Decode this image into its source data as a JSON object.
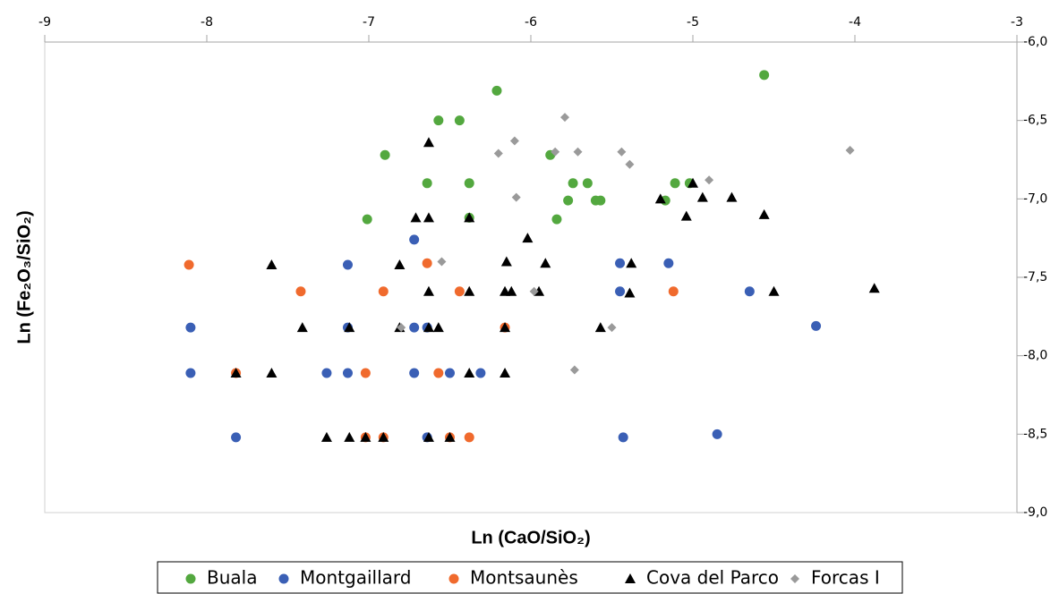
{
  "chart_data": {
    "type": "scatter",
    "xlabel": "Ln (CaO/SiO₂)",
    "ylabel": "Ln (Fe₂O₃/SiO₂)",
    "xlim": [
      -9,
      -3
    ],
    "xticks": [
      -9,
      -8,
      -7,
      -6,
      -5,
      -4,
      -3
    ],
    "ylim": [
      -9,
      -6
    ],
    "yticks": [
      {
        "value": -6,
        "label": "-6,0"
      },
      {
        "value": -6.5,
        "label": "-6,5"
      },
      {
        "value": -7,
        "label": "-7,0"
      },
      {
        "value": -7.5,
        "label": "-7,5"
      },
      {
        "value": -8,
        "label": "-8,0"
      },
      {
        "value": -8.5,
        "label": "-8,5"
      },
      {
        "value": -9,
        "label": "-9,0"
      }
    ],
    "legend": "bottom",
    "series": [
      {
        "name": "Buala",
        "color": "#53a83f",
        "marker": "circle",
        "x": [
          -4.56,
          -6.21,
          -6.57,
          -6.44,
          -6.9,
          -5.88,
          -6.64,
          -6.38,
          -5.74,
          -5.65,
          -5.11,
          -5.02,
          -7.01,
          -6.38,
          -5.84,
          -5.77,
          -5.6,
          -5.57,
          -5.17
        ],
        "values": [
          -6.21,
          -6.31,
          -6.5,
          -6.5,
          -6.72,
          -6.72,
          -6.9,
          -6.9,
          -6.9,
          -6.9,
          -6.9,
          -6.9,
          -7.13,
          -7.12,
          -7.13,
          -7.01,
          -7.01,
          -7.01,
          -7.01
        ]
      },
      {
        "name": "Montgaillard",
        "color": "#3a5fb5",
        "marker": "circle",
        "x": [
          -8.1,
          -8.1,
          -7.82,
          -7.13,
          -7.13,
          -7.13,
          -7.26,
          -6.72,
          -6.72,
          -6.72,
          -6.64,
          -6.64,
          -6.5,
          -6.31,
          -5.45,
          -5.45,
          -5.15,
          -5.43,
          -4.85,
          -4.65,
          -4.24
        ],
        "values": [
          -7.82,
          -8.11,
          -8.52,
          -7.42,
          -7.82,
          -8.11,
          -8.11,
          -7.26,
          -7.82,
          -8.11,
          -7.82,
          -8.52,
          -8.11,
          -8.11,
          -7.41,
          -7.59,
          -7.41,
          -8.52,
          -8.5,
          -7.59,
          -7.81
        ]
      },
      {
        "name": "Montsaunès",
        "color": "#f06a2d",
        "marker": "circle",
        "x": [
          -8.11,
          -7.82,
          -7.42,
          -7.02,
          -7.02,
          -6.91,
          -6.91,
          -6.64,
          -6.57,
          -6.5,
          -6.44,
          -6.38,
          -6.16,
          -5.12
        ],
        "values": [
          -7.42,
          -8.11,
          -7.59,
          -8.11,
          -8.52,
          -7.59,
          -8.52,
          -7.41,
          -8.11,
          -8.52,
          -7.59,
          -8.52,
          -7.82,
          -7.59
        ]
      },
      {
        "name": "Cova del Parco",
        "color": "#000000",
        "marker": "triangle",
        "x": [
          -7.6,
          -7.6,
          -7.82,
          -7.41,
          -7.26,
          -7.12,
          -7.12,
          -7.02,
          -6.91,
          -6.81,
          -6.81,
          -6.71,
          -6.63,
          -6.63,
          -6.63,
          -6.63,
          -6.63,
          -6.57,
          -6.5,
          -6.38,
          -6.38,
          -6.38,
          -6.16,
          -6.16,
          -6.16,
          -6.15,
          -6.12,
          -6.02,
          -5.95,
          -5.91,
          -5.57,
          -5.38,
          -5.39,
          -5.2,
          -5.04,
          -5.0,
          -4.94,
          -4.76,
          -4.56,
          -4.5,
          -3.88
        ],
        "values": [
          -7.42,
          -8.11,
          -8.11,
          -7.82,
          -8.52,
          -7.82,
          -8.52,
          -8.52,
          -8.52,
          -7.42,
          -7.82,
          -7.12,
          -6.64,
          -7.12,
          -7.59,
          -7.82,
          -8.52,
          -7.82,
          -8.52,
          -7.12,
          -7.59,
          -8.11,
          -7.59,
          -7.82,
          -8.11,
          -7.4,
          -7.59,
          -7.25,
          -7.59,
          -7.41,
          -7.82,
          -7.41,
          -7.6,
          -7.0,
          -7.11,
          -6.9,
          -6.99,
          -6.99,
          -7.1,
          -7.59,
          -7.57
        ]
      },
      {
        "name": "Forcas I",
        "color": "#9a9a9a",
        "marker": "diamond",
        "x": [
          -5.79,
          -6.1,
          -6.2,
          -5.85,
          -5.71,
          -5.44,
          -5.39,
          -6.09,
          -4.9,
          -4.03,
          -6.55,
          -5.98,
          -6.8,
          -5.5,
          -5.73
        ],
        "values": [
          -6.48,
          -6.63,
          -6.71,
          -6.7,
          -6.7,
          -6.7,
          -6.78,
          -6.99,
          -6.88,
          -6.69,
          -7.4,
          -7.59,
          -7.82,
          -7.82,
          -8.09
        ]
      }
    ]
  }
}
